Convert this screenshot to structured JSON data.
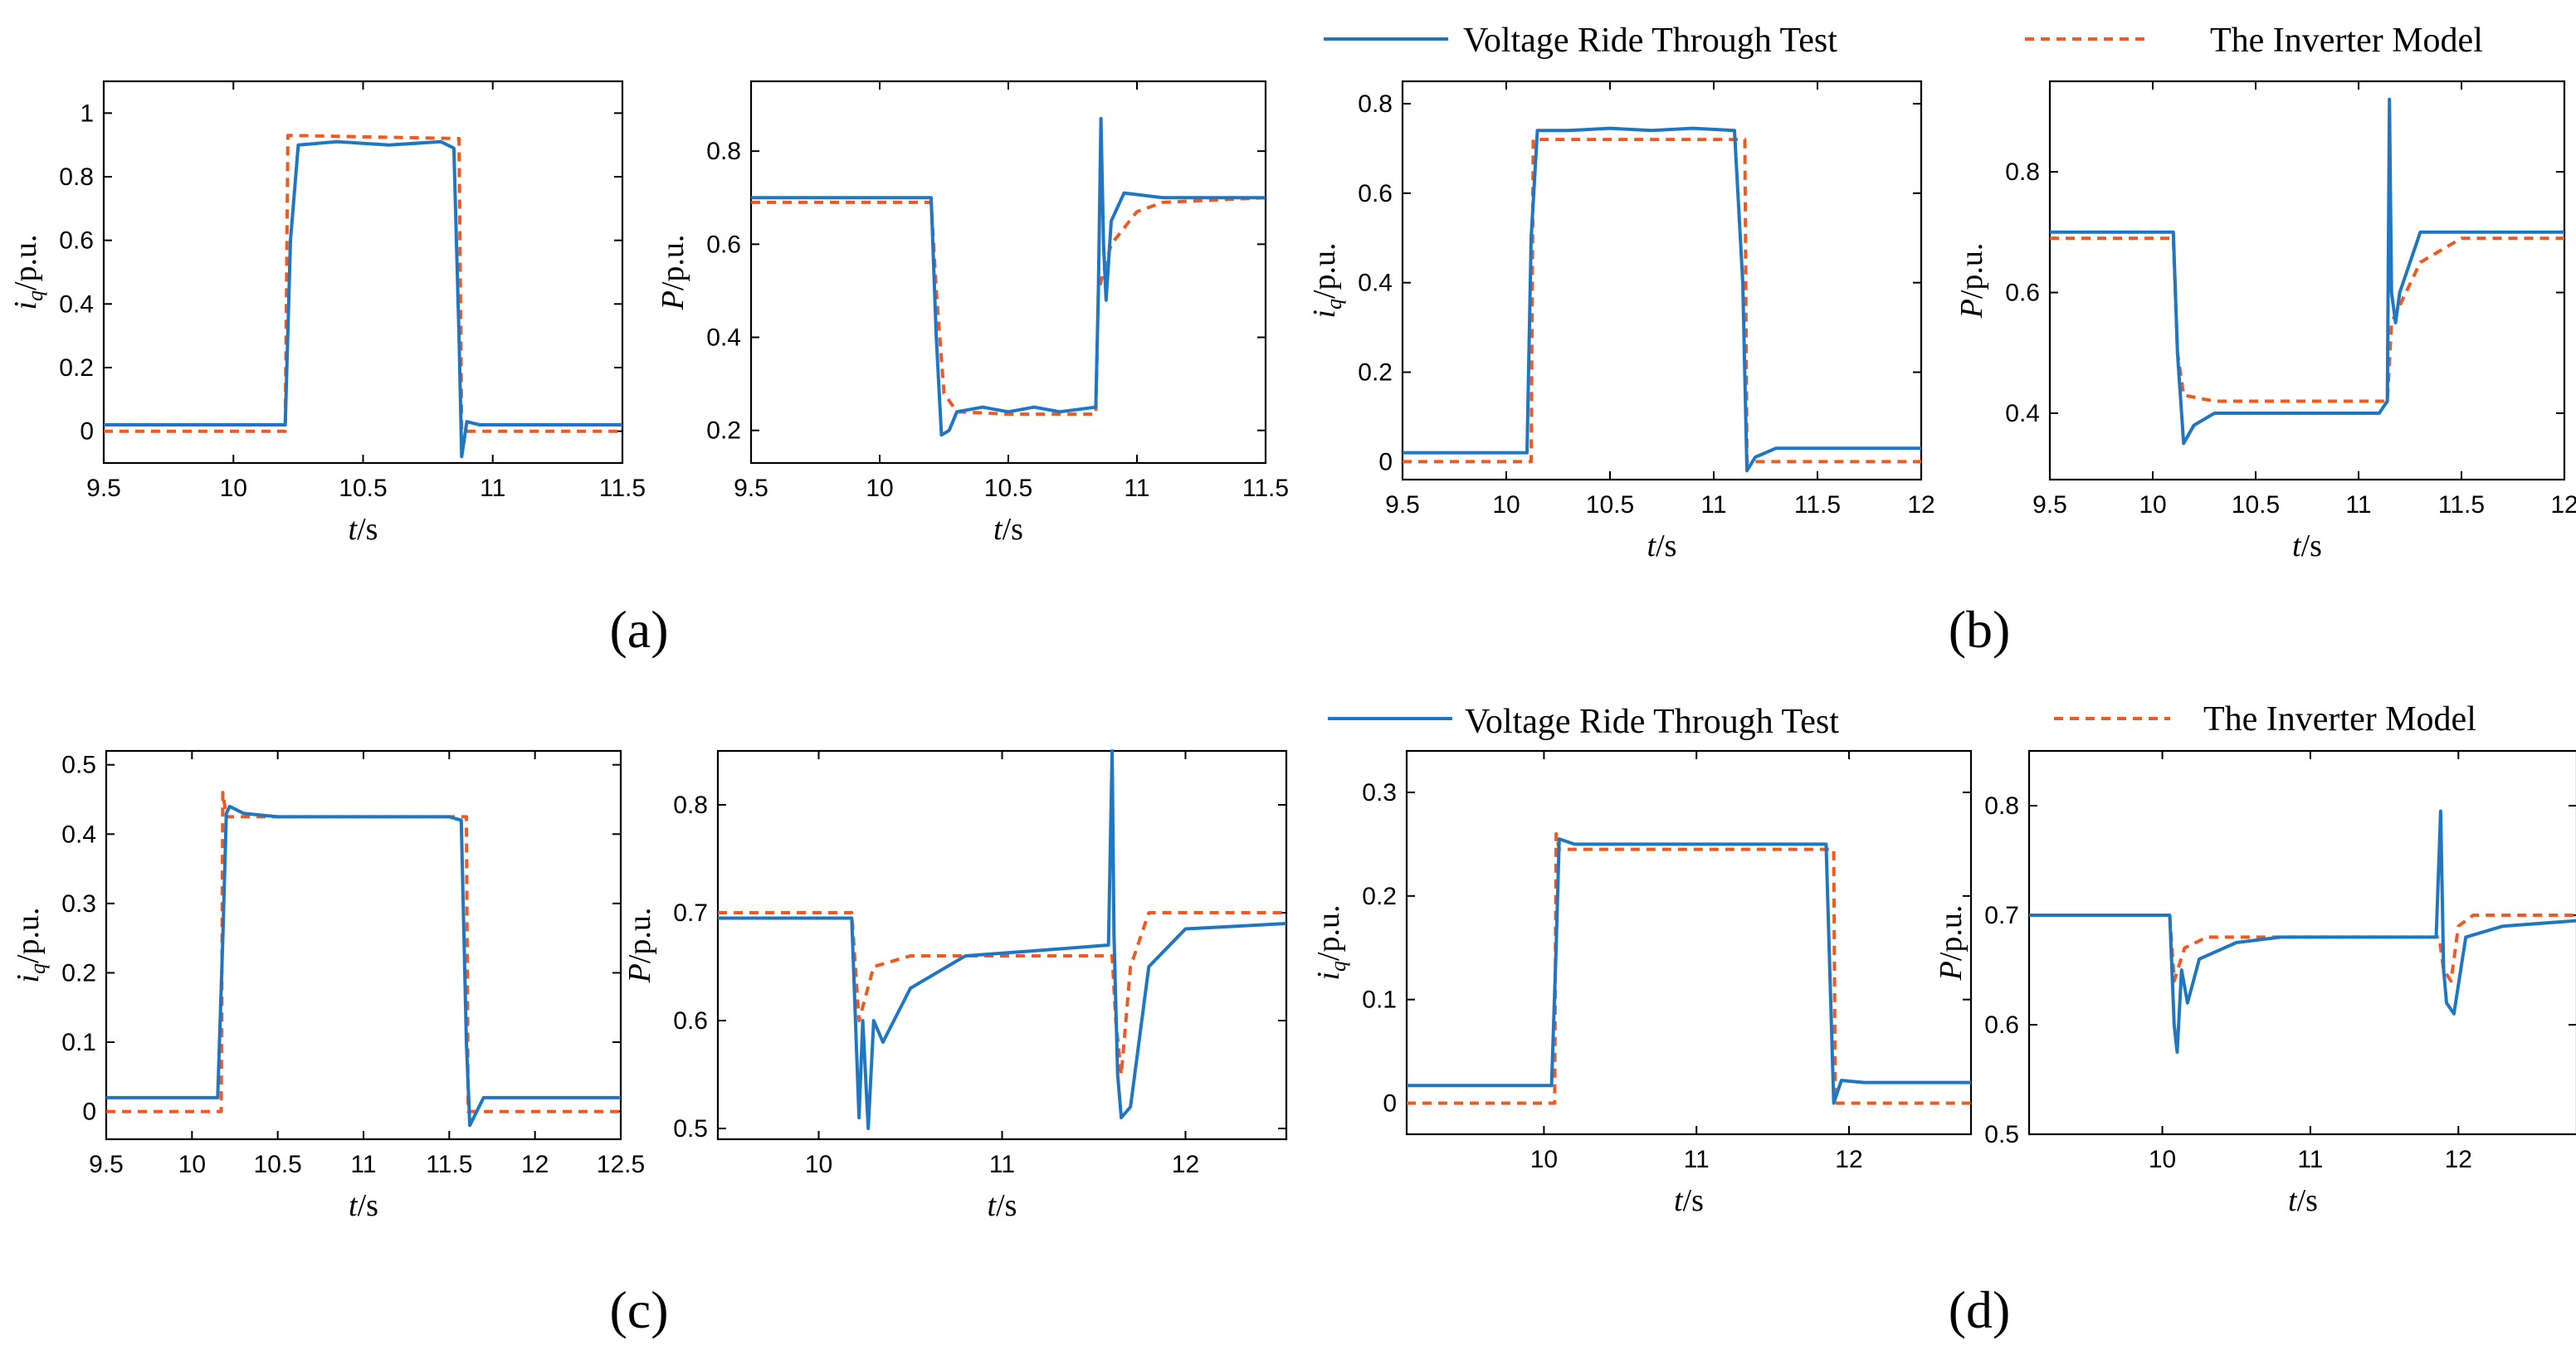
{
  "colors": {
    "test": "#1f77c4",
    "model": "#f05a22",
    "axis": "#000000",
    "background": "#ffffff"
  },
  "legends": [
    {
      "test_label": "Voltage Ride Through Test",
      "model_label": "The Inverter Model"
    },
    {
      "test_label": "Voltage Ride Through Test",
      "model_label": "The Inverter Model"
    }
  ],
  "captions": [
    "(a)",
    "(b)",
    "(c)",
    "(d)"
  ],
  "chart_data": [
    {
      "type": "line",
      "panel": "a-iq",
      "ylabel": "i_q/p.u.",
      "xlabel": "t/s",
      "xlim": [
        9.5,
        11.5
      ],
      "ylim": [
        -0.1,
        1.1
      ],
      "xticks": [
        "9.5",
        "10",
        "10.5",
        "11",
        "11.5"
      ],
      "yticks": [
        "0",
        "0.2",
        "0.4",
        "0.6",
        "0.8",
        "1"
      ],
      "series": [
        {
          "name": "Voltage Ride Through Test",
          "x": [
            9.5,
            10.2,
            10.22,
            10.25,
            10.4,
            10.6,
            10.8,
            10.85,
            10.87,
            10.88,
            10.9,
            10.95,
            11.5
          ],
          "y": [
            0.02,
            0.02,
            0.6,
            0.9,
            0.91,
            0.9,
            0.91,
            0.89,
            0.3,
            -0.08,
            0.03,
            0.02,
            0.02
          ]
        },
        {
          "name": "The Inverter Model",
          "x": [
            9.5,
            10.2,
            10.21,
            10.87,
            10.88,
            11.5
          ],
          "y": [
            0,
            0,
            0.93,
            0.92,
            0,
            0
          ]
        }
      ]
    },
    {
      "type": "line",
      "panel": "a-P",
      "ylabel": "P/p.u.",
      "xlabel": "t/s",
      "xlim": [
        9.5,
        11.5
      ],
      "ylim": [
        0.13,
        0.95
      ],
      "xticks": [
        "9.5",
        "10",
        "10.5",
        "11",
        "11.5"
      ],
      "yticks": [
        "0.2",
        "0.4",
        "0.6",
        "0.8"
      ],
      "series": [
        {
          "name": "Voltage Ride Through Test",
          "x": [
            9.5,
            10.2,
            10.22,
            10.24,
            10.27,
            10.3,
            10.4,
            10.5,
            10.6,
            10.7,
            10.84,
            10.85,
            10.86,
            10.87,
            10.88,
            10.9,
            10.95,
            11.1,
            11.5
          ],
          "y": [
            0.7,
            0.7,
            0.4,
            0.19,
            0.2,
            0.24,
            0.25,
            0.24,
            0.25,
            0.24,
            0.25,
            0.5,
            0.87,
            0.6,
            0.48,
            0.65,
            0.71,
            0.7,
            0.7
          ]
        },
        {
          "name": "The Inverter Model",
          "x": [
            9.5,
            10.2,
            10.22,
            10.25,
            10.3,
            10.5,
            10.84,
            10.85,
            10.9,
            11.0,
            11.1,
            11.5
          ],
          "y": [
            0.69,
            0.69,
            0.5,
            0.28,
            0.24,
            0.235,
            0.235,
            0.5,
            0.6,
            0.67,
            0.69,
            0.7
          ]
        }
      ]
    },
    {
      "type": "line",
      "panel": "b-iq",
      "ylabel": "i_q/p.u.",
      "xlabel": "t/s",
      "xlim": [
        9.5,
        12
      ],
      "ylim": [
        -0.04,
        0.85
      ],
      "xticks": [
        "9.5",
        "10",
        "10.5",
        "11",
        "11.5",
        "12"
      ],
      "yticks": [
        "0",
        "0.2",
        "0.4",
        "0.6",
        "0.8"
      ],
      "series": [
        {
          "name": "Voltage Ride Through Test",
          "x": [
            9.5,
            10.1,
            10.12,
            10.15,
            10.3,
            10.5,
            10.7,
            10.9,
            11.1,
            11.14,
            11.16,
            11.2,
            11.3,
            12
          ],
          "y": [
            0.02,
            0.02,
            0.5,
            0.74,
            0.74,
            0.745,
            0.74,
            0.745,
            0.74,
            0.4,
            -0.02,
            0.01,
            0.03,
            0.03
          ]
        },
        {
          "name": "The Inverter Model",
          "x": [
            9.5,
            10.12,
            10.13,
            11.15,
            11.16,
            12
          ],
          "y": [
            0,
            0,
            0.72,
            0.72,
            0,
            0
          ]
        }
      ]
    },
    {
      "type": "line",
      "panel": "b-P",
      "ylabel": "P/p.u.",
      "xlabel": "t/s",
      "xlim": [
        9.5,
        12
      ],
      "ylim": [
        0.29,
        0.95
      ],
      "xticks": [
        "9.5",
        "10",
        "10.5",
        "11",
        "11.5",
        "12"
      ],
      "yticks": [
        "0.4",
        "0.6",
        "0.8"
      ],
      "series": [
        {
          "name": "Voltage Ride Through Test",
          "x": [
            9.5,
            10.1,
            10.12,
            10.15,
            10.2,
            10.3,
            10.5,
            10.7,
            10.9,
            11.1,
            11.14,
            11.15,
            11.16,
            11.18,
            11.2,
            11.3,
            11.5,
            12
          ],
          "y": [
            0.7,
            0.7,
            0.5,
            0.35,
            0.38,
            0.4,
            0.4,
            0.4,
            0.4,
            0.4,
            0.42,
            0.92,
            0.6,
            0.55,
            0.6,
            0.7,
            0.7,
            0.7
          ]
        },
        {
          "name": "The Inverter Model",
          "x": [
            9.5,
            10.1,
            10.12,
            10.15,
            10.3,
            11.14,
            11.16,
            11.3,
            11.5,
            12
          ],
          "y": [
            0.69,
            0.69,
            0.5,
            0.43,
            0.42,
            0.42,
            0.55,
            0.65,
            0.69,
            0.69
          ]
        }
      ]
    },
    {
      "type": "line",
      "panel": "c-iq",
      "ylabel": "i_q/p.u.",
      "xlabel": "t/s",
      "xlim": [
        9.5,
        12.5
      ],
      "ylim": [
        -0.04,
        0.52
      ],
      "xticks": [
        "9.5",
        "10",
        "10.5",
        "11",
        "11.5",
        "12",
        "12.5"
      ],
      "yticks": [
        "0",
        "0.1",
        "0.2",
        "0.3",
        "0.4",
        "0.5"
      ],
      "series": [
        {
          "name": "Voltage Ride Through Test",
          "x": [
            9.5,
            10.15,
            10.18,
            10.2,
            10.22,
            10.3,
            10.5,
            11.0,
            11.5,
            11.57,
            11.6,
            11.62,
            11.7,
            11.8,
            12.5
          ],
          "y": [
            0.02,
            0.02,
            0.25,
            0.43,
            0.44,
            0.43,
            0.425,
            0.425,
            0.425,
            0.42,
            0.1,
            -0.02,
            0.02,
            0.02,
            0.02
          ]
        },
        {
          "name": "The Inverter Model",
          "x": [
            9.5,
            10.17,
            10.18,
            10.2,
            11.6,
            11.61,
            12.5
          ],
          "y": [
            0,
            0,
            0.46,
            0.425,
            0.425,
            0,
            0
          ]
        }
      ]
    },
    {
      "type": "line",
      "panel": "c-P",
      "ylabel": "P/p.u.",
      "xlabel": "t/s",
      "xlim": [
        9.45,
        12.55
      ],
      "ylim": [
        0.49,
        0.85
      ],
      "xticks": [
        "10",
        "11",
        "12"
      ],
      "yticks": [
        "0.5",
        "0.6",
        "0.7",
        "0.8"
      ],
      "series": [
        {
          "name": "Voltage Ride Through Test",
          "x": [
            9.45,
            10.18,
            10.22,
            10.24,
            10.27,
            10.3,
            10.35,
            10.5,
            10.8,
            11.2,
            11.58,
            11.6,
            11.61,
            11.63,
            11.65,
            11.7,
            11.8,
            12.0,
            12.55
          ],
          "y": [
            0.695,
            0.695,
            0.51,
            0.6,
            0.5,
            0.6,
            0.58,
            0.63,
            0.66,
            0.665,
            0.67,
            0.85,
            0.68,
            0.55,
            0.51,
            0.52,
            0.65,
            0.685,
            0.69
          ]
        },
        {
          "name": "The Inverter Model",
          "x": [
            9.45,
            10.18,
            10.22,
            10.3,
            10.5,
            11.6,
            11.62,
            11.65,
            11.7,
            11.8,
            12.0,
            12.55
          ],
          "y": [
            0.7,
            0.7,
            0.6,
            0.65,
            0.66,
            0.66,
            0.6,
            0.55,
            0.65,
            0.7,
            0.7,
            0.7
          ]
        }
      ]
    },
    {
      "type": "line",
      "panel": "d-iq",
      "ylabel": "i_q/p.u.",
      "xlabel": "t/s",
      "xlim": [
        9.1,
        12.8
      ],
      "ylim": [
        -0.03,
        0.34
      ],
      "xticks": [
        "10",
        "11",
        "12"
      ],
      "yticks": [
        "0",
        "0.1",
        "0.2",
        "0.3"
      ],
      "series": [
        {
          "name": "Voltage Ride Through Test",
          "x": [
            9.1,
            10.05,
            10.08,
            10.1,
            10.2,
            10.5,
            11.0,
            11.5,
            11.85,
            11.88,
            11.9,
            11.95,
            12.1,
            12.8
          ],
          "y": [
            0.017,
            0.017,
            0.15,
            0.255,
            0.25,
            0.25,
            0.25,
            0.25,
            0.25,
            0.1,
            0.0,
            0.022,
            0.02,
            0.02
          ]
        },
        {
          "name": "The Inverter Model",
          "x": [
            9.1,
            10.07,
            10.08,
            10.1,
            11.9,
            11.91,
            12.8
          ],
          "y": [
            0,
            0,
            0.26,
            0.245,
            0.245,
            0,
            0
          ]
        }
      ]
    },
    {
      "type": "line",
      "panel": "d-P",
      "ylabel": "P/p.u.",
      "xlabel": "t/s",
      "xlim": [
        9.1,
        12.8
      ],
      "ylim": [
        0.5,
        0.85
      ],
      "xticks": [
        "10",
        "11",
        "12"
      ],
      "yticks": [
        "0.5",
        "0.6",
        "0.7",
        "0.8"
      ],
      "series": [
        {
          "name": "Voltage Ride Through Test",
          "x": [
            9.1,
            10.05,
            10.08,
            10.1,
            10.13,
            10.17,
            10.25,
            10.5,
            10.8,
            11.2,
            11.85,
            11.88,
            11.9,
            11.92,
            11.97,
            12.05,
            12.3,
            12.8
          ],
          "y": [
            0.7,
            0.7,
            0.6,
            0.575,
            0.65,
            0.62,
            0.66,
            0.675,
            0.68,
            0.68,
            0.68,
            0.795,
            0.65,
            0.62,
            0.61,
            0.68,
            0.69,
            0.695
          ]
        },
        {
          "name": "The Inverter Model",
          "x": [
            9.1,
            10.05,
            10.08,
            10.15,
            10.3,
            11.87,
            11.9,
            11.95,
            12.0,
            12.1,
            12.8
          ],
          "y": [
            0.7,
            0.7,
            0.64,
            0.67,
            0.68,
            0.68,
            0.65,
            0.64,
            0.69,
            0.7,
            0.7
          ]
        }
      ]
    }
  ]
}
